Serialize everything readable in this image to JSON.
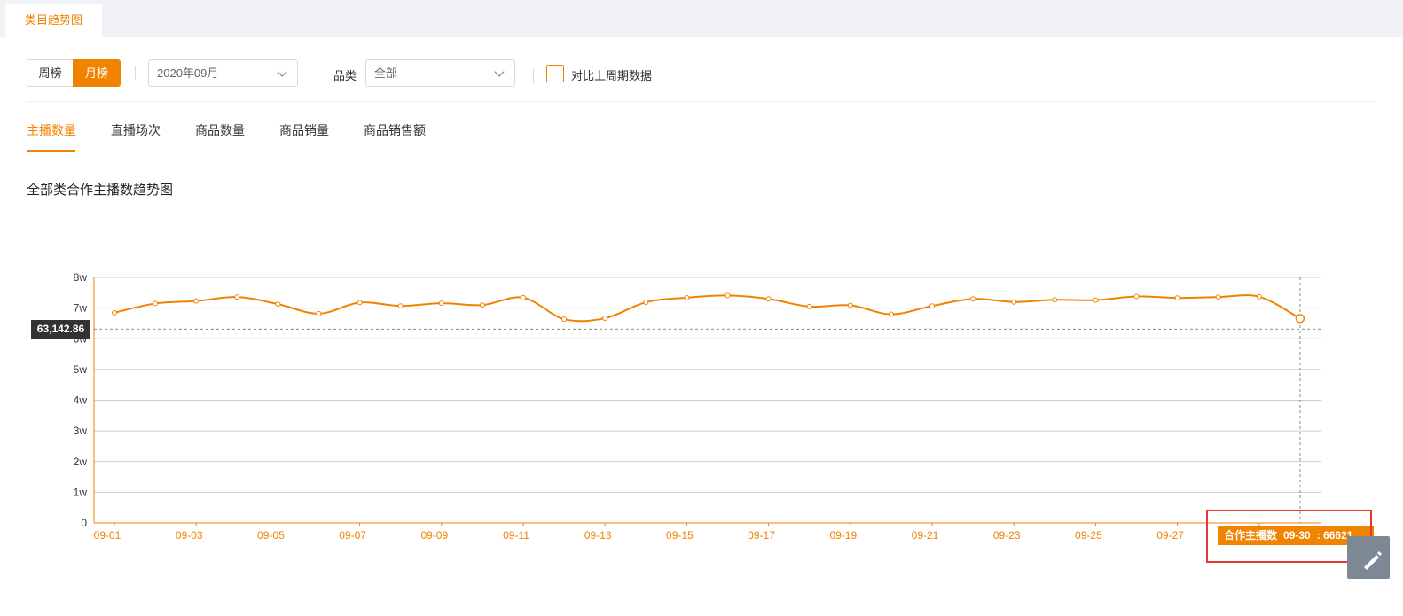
{
  "top_tab": {
    "label": "类目趋势图"
  },
  "toolbar": {
    "week_label": "周榜",
    "month_label": "月榜",
    "period_select": {
      "value": "2020年09月"
    },
    "category_label": "品类",
    "category_select": {
      "value": "全部"
    },
    "compare_checkbox": {
      "label": "对比上周期数据",
      "checked": false
    }
  },
  "metric_tabs": [
    {
      "label": "主播数量",
      "active": true
    },
    {
      "label": "直播场次",
      "active": false
    },
    {
      "label": "商品数量",
      "active": false
    },
    {
      "label": "商品销量",
      "active": false
    },
    {
      "label": "商品销售额",
      "active": false
    }
  ],
  "chart_title": "全部类合作主播数趋势图",
  "pointer_label": "63,142.86",
  "tooltip": {
    "series": "合作主播数",
    "date": "09-30",
    "value": ": 66621"
  },
  "colors": {
    "accent": "#f08300",
    "grid": "#cccccc",
    "tooltip_bg": "#f08300",
    "highlight": "#e53935"
  },
  "icons": {
    "edit": "edit-icon",
    "dropdown": "chevron-down-icon"
  },
  "chart_data": {
    "type": "line",
    "title": "全部类合作主播数趋势图",
    "y_tick_labels": [
      "0",
      "1w",
      "2w",
      "3w",
      "4w",
      "5w",
      "6w",
      "7w",
      "8w"
    ],
    "ylim": [
      0,
      80000
    ],
    "x_tick_labels": [
      "09-01",
      "09-03",
      "09-05",
      "09-07",
      "09-09",
      "09-11",
      "09-13",
      "09-15",
      "09-17",
      "09-19",
      "09-21",
      "09-23",
      "09-25",
      "09-27",
      "09-29"
    ],
    "x": [
      "09-01",
      "09-02",
      "09-03",
      "09-04",
      "09-05",
      "09-06",
      "09-07",
      "09-08",
      "09-09",
      "09-10",
      "09-11",
      "09-12",
      "09-13",
      "09-14",
      "09-15",
      "09-16",
      "09-17",
      "09-18",
      "09-19",
      "09-20",
      "09-21",
      "09-22",
      "09-23",
      "09-24",
      "09-25",
      "09-26",
      "09-27",
      "09-28",
      "09-29",
      "09-30"
    ],
    "series": [
      {
        "name": "合作主播数",
        "values": [
          68500,
          71500,
          72300,
          73600,
          71300,
          68200,
          71800,
          70700,
          71600,
          71000,
          73400,
          66400,
          66700,
          71900,
          73400,
          74100,
          73000,
          70500,
          70900,
          68000,
          70700,
          73000,
          72000,
          72700,
          72600,
          73800,
          73300,
          73600,
          73700,
          66621
        ]
      }
    ],
    "crosshair": {
      "y_value": 63142.86,
      "x": "09-30"
    },
    "grid": true
  }
}
